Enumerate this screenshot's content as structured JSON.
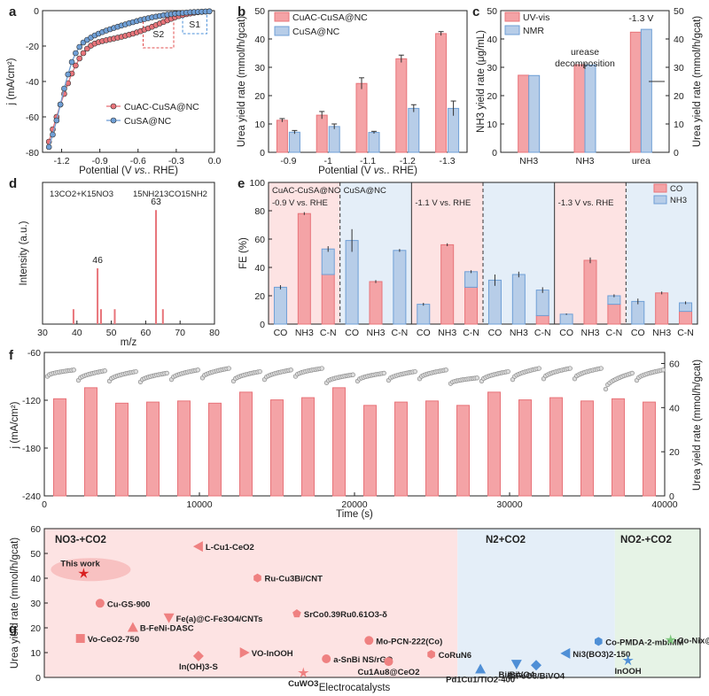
{
  "panels": {
    "a": "a",
    "b": "b",
    "c": "c",
    "d": "d",
    "e": "e",
    "f": "f",
    "g": "g"
  },
  "colors": {
    "red": "#e8747a",
    "red_fill": "#f4a3a6",
    "blue": "#6f9fd6",
    "blue_fill": "#b7cde8",
    "pink_bg": "#fde3e3",
    "blue_bg": "#e4eef8",
    "green_bg": "#e6f3e6",
    "green": "#8cc98c",
    "gray": "#8a8a8a"
  },
  "chart_data": [
    {
      "id": "a",
      "type": "line",
      "xlabel_parts": [
        "Potential (V ",
        "vs.",
        ". RHE)"
      ],
      "xlabel": "Potential (V vs. RHE)",
      "ylabel": "j (mA/cm²)",
      "xlim": [
        -1.35,
        0.0
      ],
      "ylim": [
        -80,
        0
      ],
      "xticks": [
        "-1.2",
        "-0.9",
        "-0.6",
        "-0.3",
        "0.0"
      ],
      "xtick_vals": [
        -1.2,
        -0.9,
        -0.6,
        -0.3,
        0.0
      ],
      "yticks": [
        "0",
        "-20",
        "-40",
        "-60",
        "-80"
      ],
      "ytick_vals": [
        0,
        -20,
        -40,
        -60,
        -80
      ],
      "boxes": [
        {
          "label": "S2",
          "x0": -0.56,
          "x1": -0.32,
          "y0": -4,
          "y1": -21
        },
        {
          "label": "S1",
          "x0": -0.25,
          "x1": -0.06,
          "y0": -1,
          "y1": -13
        }
      ],
      "series": [
        {
          "name": "CuAC-CuSA@NC",
          "x": [
            -1.3,
            -1.27,
            -1.24,
            -1.21,
            -1.18,
            -1.15,
            -1.12,
            -1.09,
            -1.06,
            -1.03,
            -1.0,
            -0.97,
            -0.94,
            -0.91,
            -0.88,
            -0.85,
            -0.82,
            -0.79,
            -0.76,
            -0.73,
            -0.7,
            -0.67,
            -0.64,
            -0.61,
            -0.58,
            -0.55,
            -0.52,
            -0.49,
            -0.46,
            -0.43,
            -0.4,
            -0.37,
            -0.34,
            -0.31,
            -0.28,
            -0.25,
            -0.22,
            -0.19,
            -0.16,
            -0.13,
            -0.1,
            -0.07,
            -0.04
          ],
          "y": [
            -74,
            -67,
            -60,
            -53,
            -47,
            -41,
            -35.5,
            -31,
            -27,
            -24,
            -21.5,
            -19.8,
            -18.6,
            -17.8,
            -17.2,
            -16.7,
            -16.2,
            -15.8,
            -15.3,
            -14.8,
            -14.2,
            -13.6,
            -13,
            -12.3,
            -11.6,
            -10.8,
            -10,
            -9.1,
            -8.2,
            -7.3,
            -6.4,
            -5.5,
            -4.6,
            -3.8,
            -3.1,
            -2.5,
            -2,
            -1.6,
            -1.2,
            -0.9,
            -0.7,
            -0.5,
            -0.4
          ]
        },
        {
          "name": "CuSA@NC",
          "x": [
            -1.3,
            -1.27,
            -1.24,
            -1.21,
            -1.18,
            -1.15,
            -1.12,
            -1.09,
            -1.06,
            -1.03,
            -1.0,
            -0.97,
            -0.94,
            -0.91,
            -0.88,
            -0.85,
            -0.82,
            -0.79,
            -0.76,
            -0.73,
            -0.7,
            -0.67,
            -0.64,
            -0.61,
            -0.58,
            -0.55,
            -0.52,
            -0.49,
            -0.46,
            -0.43,
            -0.4,
            -0.37,
            -0.34,
            -0.31,
            -0.28,
            -0.25,
            -0.22,
            -0.19,
            -0.16,
            -0.13,
            -0.1,
            -0.07,
            -0.04
          ],
          "y": [
            -77,
            -70,
            -62,
            -53,
            -44,
            -36,
            -29,
            -24,
            -20.5,
            -18,
            -16.5,
            -15.2,
            -14,
            -13,
            -12.1,
            -11.3,
            -10.5,
            -9.8,
            -9.1,
            -8.4,
            -7.8,
            -7.1,
            -6.5,
            -5.9,
            -5.3,
            -4.8,
            -4.3,
            -3.8,
            -3.4,
            -3,
            -2.6,
            -2.3,
            -2,
            -1.7,
            -1.5,
            -1.3,
            -1.1,
            -0.9,
            -0.8,
            -0.7,
            -0.6,
            -0.5,
            -0.4
          ]
        }
      ]
    },
    {
      "id": "b",
      "type": "bar",
      "xlabel_parts": [
        "Potential (V ",
        "vs.",
        ". RHE)"
      ],
      "xlabel": "Potential (V vs. RHE)",
      "ylabel": "Urea yield rate (mmol/h/gcat)",
      "categories": [
        "-0.9",
        "-1",
        "-1.1",
        "-1.2",
        "-1.3"
      ],
      "ylim": [
        0,
        50
      ],
      "yticks": [
        "0",
        "10",
        "20",
        "30",
        "40",
        "50"
      ],
      "ytick_vals": [
        0,
        10,
        20,
        30,
        40,
        50
      ],
      "series": [
        {
          "name": "CuAC-CuSA@NC",
          "values": [
            11.3,
            13.1,
            24.3,
            33.0,
            41.9
          ],
          "errors": [
            0.6,
            1.3,
            2.0,
            1.3,
            0.7
          ]
        },
        {
          "name": "CuSA@NC",
          "values": [
            7.1,
            9.1,
            7.0,
            15.5,
            15.5
          ],
          "errors": [
            0.6,
            0.9,
            0.4,
            1.3,
            2.6
          ]
        }
      ]
    },
    {
      "id": "c",
      "type": "bar",
      "ylabel": "NH3 yield rate (μg/mL)",
      "ylabel_right": "Urea yield rate (mmol/h/gcat)",
      "categories": [
        "NH3",
        "NH3",
        "urea"
      ],
      "ylim": [
        0,
        50
      ],
      "yticks": [
        "0",
        "10",
        "20",
        "30",
        "40",
        "50"
      ],
      "ytick_vals": [
        0,
        10,
        20,
        30,
        40,
        50
      ],
      "annotations": [
        "urease",
        "decomposition",
        "-1.3 V"
      ],
      "series": [
        {
          "name": "UV-vis",
          "values": [
            27.2,
            30.9,
            42.4
          ]
        },
        {
          "name": "NMR",
          "values": [
            27.1,
            30.8,
            43.4
          ]
        }
      ]
    },
    {
      "id": "d",
      "type": "bar",
      "xlabel": "m/z",
      "ylabel": "Intensity (a.u.)",
      "xlim": [
        30,
        80
      ],
      "xticks": [
        "30",
        "40",
        "50",
        "60",
        "70",
        "80"
      ],
      "xtick_vals": [
        30,
        40,
        50,
        60,
        70,
        80
      ],
      "annotations": [
        "13CO2+K15NO3",
        "15NH213CO15NH2"
      ],
      "peak_labels": [
        "46",
        "63"
      ],
      "peaks": {
        "x": [
          39,
          46,
          47,
          51,
          63,
          65
        ],
        "intensity": [
          0.12,
          0.45,
          0.12,
          0.12,
          0.92,
          0.12
        ]
      }
    },
    {
      "id": "e",
      "type": "bar",
      "ylabel": "FE (%)",
      "ylim": [
        0,
        100
      ],
      "yticks": [
        "0",
        "20",
        "40",
        "60",
        "80",
        "100"
      ],
      "ytick_vals": [
        0,
        20,
        40,
        60,
        80,
        100
      ],
      "group_labels": [
        "CuAC-CuSA@NC",
        "CuSA@NC"
      ],
      "potentials": [
        "-0.9 V vs. RHE",
        "-1.1 V vs. RHE",
        "-1.3 V vs. RHE"
      ],
      "categories": [
        "CO",
        "NH3",
        "C-N",
        "CO",
        "NH3",
        "C-N",
        "CO",
        "NH3",
        "C-N",
        "CO",
        "NH3",
        "C-N",
        "CO",
        "NH3",
        "C-N",
        "CO",
        "NH3",
        "C-N"
      ],
      "series": [
        {
          "name": "CO",
          "values": [
            0,
            78,
            35,
            0,
            30,
            0,
            0,
            56,
            26,
            0,
            0,
            6,
            0,
            45,
            14,
            0,
            22,
            9
          ]
        },
        {
          "name": "NH3",
          "values": [
            26,
            0,
            18,
            59,
            0,
            52,
            14,
            0,
            11,
            31,
            35,
            18,
            7,
            0,
            6,
            16,
            0,
            6
          ]
        }
      ],
      "errors_total": [
        1.5,
        1,
        2,
        8,
        1,
        1,
        1,
        1,
        1,
        4,
        2,
        2,
        0.5,
        2,
        1,
        2,
        1,
        1
      ]
    },
    {
      "id": "f",
      "type": "bar",
      "xlabel": "Time (s)",
      "ylabel": "j (mA/cm²)",
      "ylabel_right": "Urea yield rate (mmol/h/gcat)",
      "xlim": [
        0,
        40000
      ],
      "ylim": [
        -240,
        -60
      ],
      "ylim_right": [
        0,
        65
      ],
      "xticks": [
        "0",
        "10000",
        "20000",
        "30000",
        "40000"
      ],
      "xtick_vals": [
        0,
        10000,
        20000,
        30000,
        40000
      ],
      "yticks": [
        "-60",
        "-120",
        "-180",
        "-240"
      ],
      "ytick_vals": [
        -60,
        -120,
        -180,
        -240
      ],
      "yticks_right": [
        "0",
        "20",
        "40",
        "60"
      ],
      "ytick_vals_right": [
        0,
        20,
        40,
        60
      ],
      "bars_time": [
        1000,
        3000,
        5000,
        7000,
        9000,
        11000,
        13000,
        15000,
        17000,
        19000,
        21000,
        23000,
        25000,
        27000,
        29000,
        31000,
        33000,
        35000,
        37000,
        39000
      ],
      "bars_values": [
        44,
        49,
        42,
        42.5,
        43,
        42,
        47,
        43.5,
        44.5,
        49,
        41,
        42.5,
        43,
        41,
        47,
        43.5,
        44.5,
        43,
        44,
        42.5
      ],
      "current_segments": [
        [
          -90,
          -82
        ],
        [
          -95,
          -83
        ],
        [
          -96,
          -84
        ],
        [
          -97,
          -86
        ],
        [
          -94,
          -82
        ],
        [
          -92,
          -80
        ],
        [
          -96,
          -84
        ],
        [
          -94,
          -82
        ],
        [
          -90,
          -80
        ],
        [
          -98,
          -88
        ],
        [
          -96,
          -86
        ],
        [
          -95,
          -84
        ],
        [
          -93,
          -82
        ],
        [
          -99,
          -92
        ],
        [
          -96,
          -84
        ],
        [
          -94,
          -80
        ],
        [
          -93,
          -80
        ],
        [
          -93,
          -80
        ],
        [
          -106,
          -86
        ],
        [
          -95,
          -82
        ]
      ]
    },
    {
      "id": "g",
      "type": "scatter",
      "xlabel": "Electrocatalysts",
      "ylabel": "Urea yield rate (mmol/h/gcat)",
      "ylim": [
        0,
        60
      ],
      "yticks": [
        "0",
        "10",
        "20",
        "30",
        "40",
        "50",
        "60"
      ],
      "ytick_vals": [
        0,
        10,
        20,
        30,
        40,
        50,
        60
      ],
      "regions": [
        "NO3-+CO2",
        "N2+CO2",
        "NO2-+CO2"
      ],
      "points": [
        {
          "label": "This work",
          "x": 0.06,
          "y": 41.9,
          "marker": "star",
          "group": "red"
        },
        {
          "label": "Cu-GS-900",
          "x": 0.085,
          "y": 29.9,
          "marker": "circle",
          "group": "red"
        },
        {
          "label": "Vo-CeO2-750",
          "x": 0.055,
          "y": 15.7,
          "marker": "square",
          "group": "red"
        },
        {
          "label": "B-FeNi-DASC",
          "x": 0.135,
          "y": 20.2,
          "marker": "triangle",
          "group": "red"
        },
        {
          "label": "Fe(a)@C-Fe3O4/CNTs",
          "x": 0.19,
          "y": 24.0,
          "marker": "down",
          "group": "red"
        },
        {
          "label": "L-Cu1-CeO2",
          "x": 0.235,
          "y": 52.8,
          "marker": "left",
          "group": "red"
        },
        {
          "label": "In(OH)3-S",
          "x": 0.235,
          "y": 8.6,
          "marker": "diamond",
          "group": "red"
        },
        {
          "label": "Ru-Cu3Bi/CNT",
          "x": 0.325,
          "y": 40.1,
          "marker": "hexagon",
          "group": "red"
        },
        {
          "label": "SrCo0.39Ru0.61O3-δ",
          "x": 0.385,
          "y": 25.7,
          "marker": "pentagon",
          "group": "red"
        },
        {
          "label": "VO-InOOH",
          "x": 0.305,
          "y": 10.0,
          "marker": "right",
          "group": "red"
        },
        {
          "label": "CuWO3",
          "x": 0.395,
          "y": 1.8,
          "marker": "star",
          "group": "red"
        },
        {
          "label": "a-SnBi NS/rGO",
          "x": 0.43,
          "y": 7.5,
          "marker": "circle",
          "group": "red"
        },
        {
          "label": "Mo-PCN-222(Co)",
          "x": 0.495,
          "y": 14.9,
          "marker": "half",
          "group": "red"
        },
        {
          "label": "Cu1Au8@CeO2",
          "x": 0.525,
          "y": 6.4,
          "marker": "circle",
          "group": "red"
        },
        {
          "label": "CoRuN6",
          "x": 0.59,
          "y": 9.3,
          "marker": "hexagon",
          "group": "red"
        },
        {
          "label": "Pd1Cu1/TiO2-400",
          "x": 0.665,
          "y": 3.4,
          "marker": "triangle",
          "group": "blue"
        },
        {
          "label": "Bi/BiVO4",
          "x": 0.72,
          "y": 5.3,
          "marker": "down",
          "group": "blue"
        },
        {
          "label": "BiFeO3/BiVO4",
          "x": 0.75,
          "y": 4.9,
          "marker": "diamond",
          "group": "blue"
        },
        {
          "label": "Ni3(BO3)2-150",
          "x": 0.795,
          "y": 9.7,
          "marker": "left",
          "group": "blue"
        },
        {
          "label": "Co-PMDA-2-mbIMM",
          "x": 0.845,
          "y": 14.5,
          "marker": "hexagon",
          "group": "blue"
        },
        {
          "label": "InOOH",
          "x": 0.89,
          "y": 6.8,
          "marker": "star",
          "group": "blue"
        },
        {
          "label": "Co-Nix@GDY",
          "x": 0.955,
          "y": 15.1,
          "marker": "star",
          "group": "green"
        }
      ]
    }
  ]
}
